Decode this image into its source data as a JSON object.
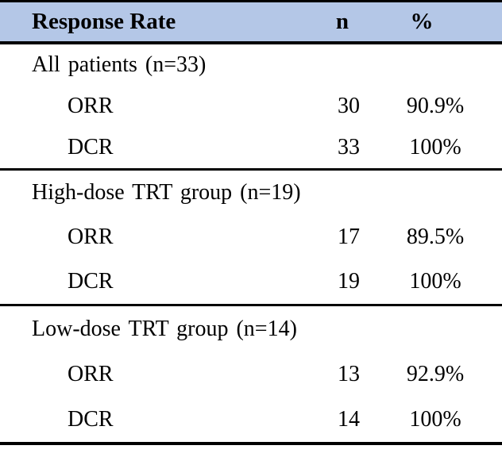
{
  "table": {
    "header": {
      "label": "Response Rate",
      "n": "n",
      "pct": "%"
    },
    "header_bg": "#b4c7e7",
    "border_color": "#000000",
    "sections": [
      {
        "title": "All patients (n=33)",
        "rows": [
          {
            "label": "ORR",
            "n": "30",
            "pct": "90.9%"
          },
          {
            "label": "DCR",
            "n": "33",
            "pct": "100%"
          }
        ]
      },
      {
        "title": "High-dose TRT group (n=19)",
        "rows": [
          {
            "label": "ORR",
            "n": "17",
            "pct": "89.5%"
          },
          {
            "label": "DCR",
            "n": "19",
            "pct": "100%"
          }
        ]
      },
      {
        "title": "Low-dose TRT group (n=14)",
        "rows": [
          {
            "label": "ORR",
            "n": "13",
            "pct": "92.9%"
          },
          {
            "label": "DCR",
            "n": "14",
            "pct": "100%"
          }
        ]
      }
    ]
  }
}
